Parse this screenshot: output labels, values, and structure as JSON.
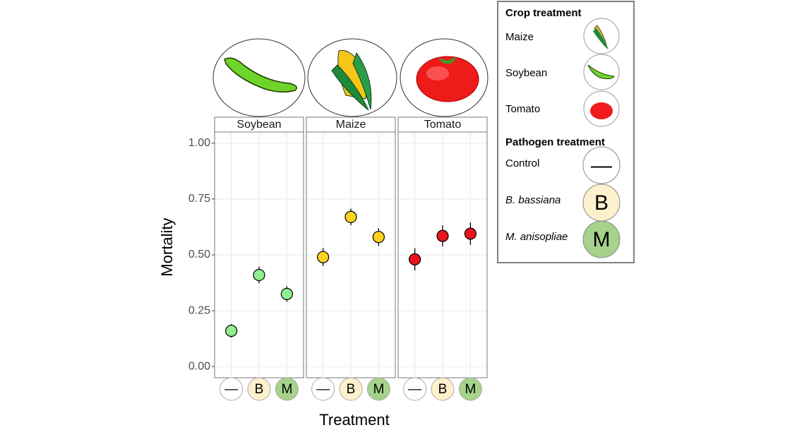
{
  "chart_data": {
    "type": "dot",
    "y_label": "Mortality",
    "x_label": "Treatment",
    "categories": [
      "—",
      "B",
      "M"
    ],
    "category_colors": [
      "#ffffff",
      "#fdf0cc",
      "#a6d28c"
    ],
    "ylim": [
      -0.05,
      1.05
    ],
    "yticks": [
      {
        "value": 0,
        "label": "0.00"
      },
      {
        "value": 0.25,
        "label": "0.25"
      },
      {
        "value": 0.5,
        "label": "0.50"
      },
      {
        "value": 0.75,
        "label": "0.75"
      },
      {
        "value": 1,
        "label": "1.00"
      }
    ],
    "grid": true,
    "facets": [
      {
        "name": "Soybean",
        "color": "#90ee90",
        "values": [
          0.16,
          0.41,
          0.325
        ],
        "errors": [
          0.03,
          0.037,
          0.035
        ]
      },
      {
        "name": "Maize",
        "color": "#ffd21f",
        "values": [
          0.49,
          0.67,
          0.58
        ],
        "errors": [
          0.04,
          0.037,
          0.04
        ]
      },
      {
        "name": "Tomato",
        "color": "#e8141c",
        "values": [
          0.48,
          0.585,
          0.595
        ],
        "errors": [
          0.05,
          0.047,
          0.05
        ]
      }
    ],
    "legend": {
      "crop_title": "Crop treatment",
      "crop_items": [
        "Maize",
        "Soybean",
        "Tomato"
      ],
      "pathogen_title": "Pathogen treatment",
      "pathogen_items": [
        "Control",
        "B. bassiana",
        "M. anisopliae"
      ]
    }
  }
}
